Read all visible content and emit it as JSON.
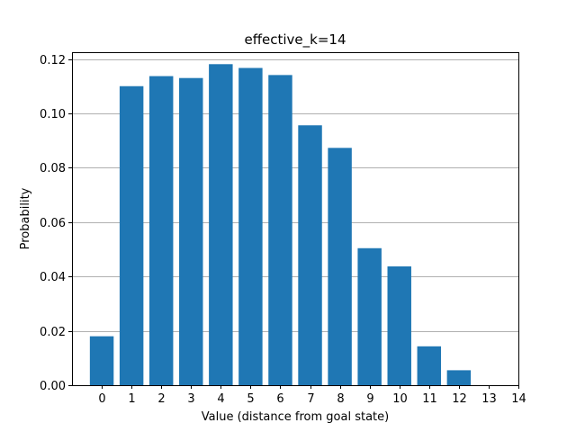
{
  "chart_data": {
    "type": "bar",
    "title": "effective_k=14",
    "xlabel": "Value (distance from goal state)",
    "ylabel": "Probability",
    "categories": [
      0,
      1,
      2,
      3,
      4,
      5,
      6,
      7,
      8,
      9,
      10,
      11,
      12,
      13,
      14
    ],
    "values": [
      0.018,
      0.11,
      0.1137,
      0.113,
      0.1181,
      0.1167,
      0.1141,
      0.0956,
      0.0873,
      0.0504,
      0.0437,
      0.0143,
      0.0055,
      0.0,
      0.0
    ],
    "xlim": [
      -1.0,
      14.0
    ],
    "ylim": [
      0,
      0.1225
    ],
    "yticks": [
      0.0,
      0.02,
      0.04,
      0.06,
      0.08,
      0.1,
      0.12
    ],
    "ytick_labels": [
      "0.00",
      "0.02",
      "0.04",
      "0.06",
      "0.08",
      "0.10",
      "0.12"
    ],
    "xticks": [
      0,
      1,
      2,
      3,
      4,
      5,
      6,
      7,
      8,
      9,
      10,
      11,
      12,
      13,
      14
    ],
    "xtick_labels": [
      "0",
      "1",
      "2",
      "3",
      "4",
      "5",
      "6",
      "7",
      "8",
      "9",
      "10",
      "11",
      "12",
      "13",
      "14"
    ],
    "bar_color": "#1f77b4",
    "grid": "y-major",
    "grid_color": "#b0b0b0"
  }
}
